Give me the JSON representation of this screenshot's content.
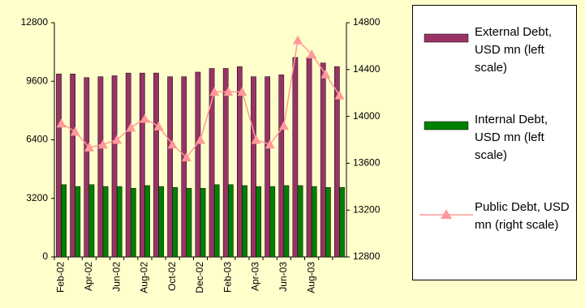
{
  "chart_data": {
    "type": "bar-line",
    "categories": [
      "Feb-02",
      null,
      "Apr-02",
      null,
      "Jun-02",
      null,
      "Aug-02",
      null,
      "Oct-02",
      null,
      "Dec-02",
      null,
      "Feb-03",
      null,
      "Apr-03",
      null,
      "Jun-03",
      null,
      "Aug-03",
      null,
      null
    ],
    "series": [
      {
        "name": "External Debt, USD mn (left scale)",
        "type": "bar",
        "color": "#993366",
        "values": [
          10000,
          10000,
          9800,
          9850,
          9900,
          10050,
          10050,
          10050,
          9850,
          9850,
          10100,
          10300,
          10300,
          10400,
          9850,
          9850,
          9950,
          10900,
          10900,
          10600,
          10400
        ]
      },
      {
        "name": "Internal Debt, USD mn (left scale)",
        "type": "bar",
        "color": "#008000",
        "values": [
          3950,
          3850,
          3950,
          3850,
          3850,
          3750,
          3900,
          3850,
          3800,
          3750,
          3750,
          3950,
          3950,
          3900,
          3850,
          3850,
          3900,
          3900,
          3850,
          3800,
          3800
        ]
      },
      {
        "name": "Public Debt, USD mn (right scale)",
        "type": "line",
        "axis": "y2",
        "color": "#ff9999",
        "values": [
          13940,
          13870,
          13735,
          13760,
          13800,
          13905,
          13980,
          13915,
          13760,
          13650,
          13800,
          14210,
          14210,
          14210,
          13800,
          13760,
          13920,
          14650,
          14530,
          14360,
          14180
        ]
      }
    ],
    "ylim": [
      0,
      12800
    ],
    "yticks": [
      0,
      3200,
      6400,
      9600,
      12800
    ],
    "y2lim": [
      12800,
      14800
    ],
    "y2ticks": [
      12800,
      13200,
      13600,
      14000,
      14400,
      14800
    ]
  }
}
